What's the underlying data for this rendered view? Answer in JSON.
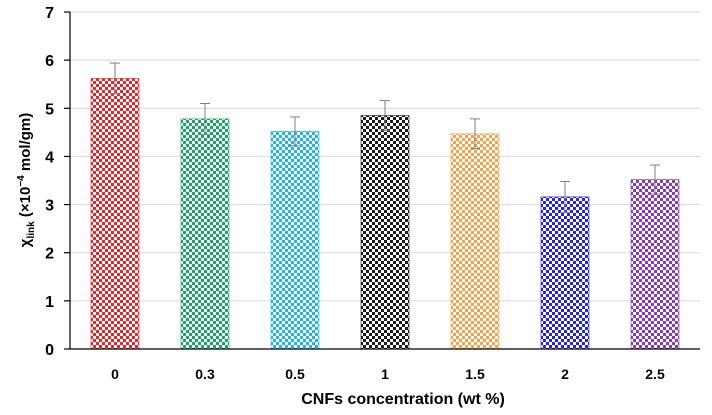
{
  "chart_data": {
    "type": "bar",
    "categories": [
      "0",
      "0.3",
      "0.5",
      "1",
      "1.5",
      "2",
      "2.5"
    ],
    "values": [
      5.62,
      4.78,
      4.52,
      4.85,
      4.47,
      3.16,
      3.52
    ],
    "error": [
      0.32,
      0.32,
      0.3,
      0.31,
      0.31,
      0.32,
      0.3
    ],
    "colors": [
      "#e0282a",
      "#1aa564",
      "#20b8df",
      "#1a1a1a",
      "#f5a24a",
      "#2424d8",
      "#8a3ab0"
    ],
    "xlabel": "CNFs concentration  (wt %)",
    "ylabel": {
      "symbol": "χ",
      "subscript": "link",
      "prefix": " (×10",
      "exponent": "−4",
      "suffix": " mol/gm)"
    },
    "ylim": [
      0,
      7
    ],
    "yticks": [
      "0",
      "1",
      "2",
      "3",
      "4",
      "5",
      "6",
      "7"
    ],
    "grid": true
  }
}
